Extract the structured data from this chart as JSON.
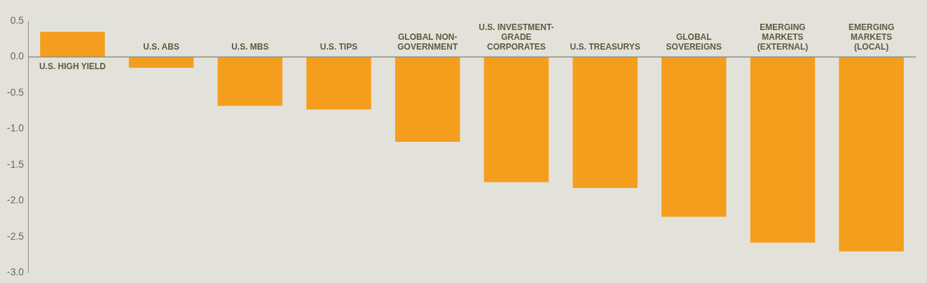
{
  "chart_data": {
    "type": "bar",
    "categories": [
      "U.S. HIGH YIELD",
      "U.S. ABS",
      "U.S. MBS",
      "U.S. TIPS",
      "GLOBAL NON-GOVERNMENT",
      "U.S. INVESTMENT-GRADE CORPORATES",
      "U.S. TREASURYS",
      "GLOBAL SOVEREIGNS",
      "EMERGING MARKETS (EXTERNAL)",
      "EMERGING MARKETS (LOCAL)"
    ],
    "values": [
      0.35,
      -0.15,
      -0.68,
      -0.73,
      -1.18,
      -1.74,
      -1.82,
      -2.22,
      -2.58,
      -2.7
    ],
    "color": "#f59e1e",
    "ylim": [
      -3,
      0.5
    ],
    "yticks": [
      {
        "value": 0.5,
        "label": "0.5"
      },
      {
        "value": 0,
        "label": "0.0"
      },
      {
        "value": -0.5,
        "label": "-0.5"
      },
      {
        "value": -1,
        "label": "-1.0"
      },
      {
        "value": -1.5,
        "label": "-1.5"
      },
      {
        "value": -2,
        "label": "-2.0"
      },
      {
        "value": -2.5,
        "label": "-2.5"
      },
      {
        "value": -3,
        "label": "-3.0"
      }
    ],
    "grid": false,
    "legend": false
  }
}
